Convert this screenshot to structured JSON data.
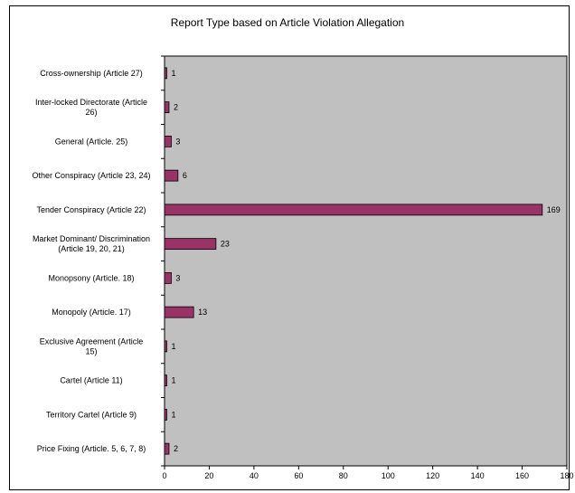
{
  "chart_data": {
    "type": "bar",
    "orientation": "horizontal",
    "title": "Report Type based on Article Violation Allegation",
    "xlabel": "",
    "ylabel": "",
    "xlim": [
      0,
      180
    ],
    "x_ticks": [
      0,
      20,
      40,
      60,
      80,
      100,
      120,
      140,
      160,
      180
    ],
    "grid": false,
    "legend": "none",
    "categories": [
      [
        "Cross-ownership (Article 27)"
      ],
      [
        "Inter-locked Directorate (Article",
        "26)"
      ],
      [
        "General (Article. 25)"
      ],
      [
        "Other Conspiracy (Article 23, 24)"
      ],
      [
        "Tender Conspiracy (Article 22)"
      ],
      [
        "Market Dominant/ Discrimination",
        "(Article 19, 20, 21)"
      ],
      [
        "Monopsony (Article. 18)"
      ],
      [
        "Monopoly (Article. 17)"
      ],
      [
        "Exclusive Agreement (Article",
        "15)"
      ],
      [
        "Cartel (Article 11)"
      ],
      [
        "Territory Cartel (Article 9)"
      ],
      [
        "Price Fixing (Article. 5, 6, 7, 8)"
      ]
    ],
    "values": [
      1,
      2,
      3,
      6,
      169,
      23,
      3,
      13,
      1,
      1,
      1,
      2
    ],
    "colors": {
      "bar": "#993366",
      "bar_stroke": "#000000",
      "plot_background": "#c0c0c0"
    }
  }
}
